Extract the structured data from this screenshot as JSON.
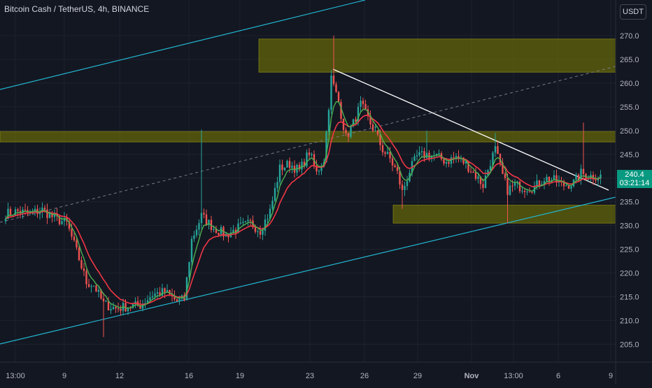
{
  "header": {
    "symbol_title": "Bitcoin Cash / TetherUS, 4h, BINANCE",
    "currency_button": "USDT"
  },
  "last_price": {
    "value": "240.4",
    "countdown": "03:21:14"
  },
  "colors": {
    "background": "#131722",
    "grid": "#1e222d",
    "up_candle": "#26a69a",
    "down_candle": "#ef5350",
    "fast_ma": "#4caf50",
    "slow_ma": "#f23645",
    "channel": "#22b5d0",
    "trendline": "#ffffff",
    "zone": "#808000",
    "price_tag": "#089981"
  },
  "chart_data": {
    "type": "candlestick",
    "x_tick_labels": [
      "13:00",
      "9",
      "12",
      "16",
      "19",
      "23",
      "26",
      "29",
      "Nov",
      "13:00",
      "6",
      "9"
    ],
    "y_ticks": [
      205.0,
      210.0,
      215.0,
      220.0,
      225.0,
      230.0,
      235.0,
      240.0,
      245.0,
      250.0,
      255.0,
      260.0,
      265.0,
      270.0
    ],
    "y_tick_labels": [
      "205.0",
      "210.0",
      "215.0",
      "220.0",
      "225.0",
      "230.0",
      "235.0",
      "240.0",
      "245.0",
      "250.0",
      "255.0",
      "260.0",
      "265.0",
      "270.0"
    ],
    "ylim": [
      201.8,
      273.0
    ],
    "zones": [
      {
        "from": 262.3,
        "to": 269.3
      },
      {
        "from": 247.6,
        "to": 249.8
      },
      {
        "from": 230.5,
        "to": 234.3
      }
    ],
    "close_path": [
      [
        0,
        232.5
      ],
      [
        5,
        233.0
      ],
      [
        10,
        232.5
      ],
      [
        15,
        233.3
      ],
      [
        20,
        231.5
      ],
      [
        25,
        230.5
      ],
      [
        30,
        223.0
      ],
      [
        33,
        218.0
      ],
      [
        36,
        217.5
      ],
      [
        40,
        213.5
      ],
      [
        45,
        212.5
      ],
      [
        50,
        213.0
      ],
      [
        55,
        213.2
      ],
      [
        60,
        215.5
      ],
      [
        65,
        216.0
      ],
      [
        70,
        214.0
      ],
      [
        73,
        214.5
      ],
      [
        76,
        227.0
      ],
      [
        80,
        232.0
      ],
      [
        85,
        229.5
      ],
      [
        90,
        228.0
      ],
      [
        95,
        229.5
      ],
      [
        100,
        230.5
      ],
      [
        104,
        229.0
      ],
      [
        108,
        233.0
      ],
      [
        112,
        242.0
      ],
      [
        116,
        243.0
      ],
      [
        120,
        241.5
      ],
      [
        124,
        245.5
      ],
      [
        127,
        241.0
      ],
      [
        130,
        244.0
      ],
      [
        133,
        261.0
      ],
      [
        136,
        256.0
      ],
      [
        139,
        248.5
      ],
      [
        142,
        251.5
      ],
      [
        145,
        255.5
      ],
      [
        148,
        252.5
      ],
      [
        151,
        249.5
      ],
      [
        154,
        246.0
      ],
      [
        157,
        244.0
      ],
      [
        160,
        241.0
      ],
      [
        162,
        237.0
      ],
      [
        165,
        241.5
      ],
      [
        168,
        244.5
      ],
      [
        172,
        245.0
      ],
      [
        176,
        244.5
      ],
      [
        180,
        243.5
      ],
      [
        184,
        244.5
      ],
      [
        188,
        243.0
      ],
      [
        192,
        240.5
      ],
      [
        195,
        238.5
      ],
      [
        198,
        243.5
      ],
      [
        200,
        246.0
      ],
      [
        203,
        240.5
      ],
      [
        205,
        237.5
      ],
      [
        208,
        238.5
      ],
      [
        212,
        238.0
      ],
      [
        216,
        238.0
      ],
      [
        220,
        240.0
      ],
      [
        224,
        239.5
      ],
      [
        228,
        238.5
      ],
      [
        232,
        239.0
      ],
      [
        235,
        241.0
      ],
      [
        238,
        240.5
      ],
      [
        241,
        240.4
      ]
    ],
    "spikes": [
      {
        "x": 80,
        "high": 250.2
      },
      {
        "x": 134,
        "high": 270.0
      },
      {
        "x": 172,
        "high": 250.0
      },
      {
        "x": 200,
        "high": 249.5
      },
      {
        "x": 236,
        "high": 251.7
      }
    ],
    "lows": [
      {
        "x": 40,
        "low": 206.5
      },
      {
        "x": 162,
        "low": 233.5
      },
      {
        "x": 205,
        "low": 230.5
      }
    ]
  }
}
